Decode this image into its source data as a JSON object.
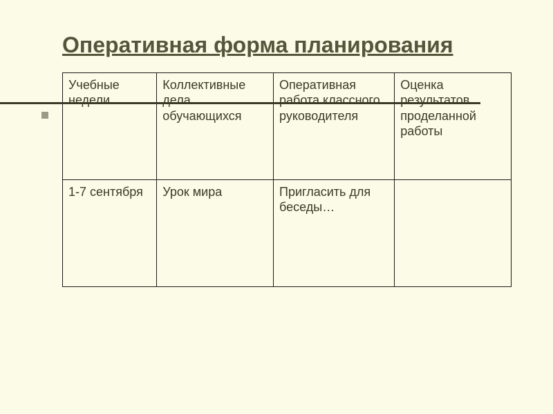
{
  "title": "Оперативная форма планирования",
  "table": {
    "columns": [
      "Учебные недели",
      "Коллективные дела обучающихся",
      "Оперативная работа классного руководителя",
      "Оценка результатов проделанной работы"
    ],
    "rows": [
      [
        "1-7 сентября",
        "Урок мира",
        "Пригласить для беседы…",
        ""
      ]
    ]
  },
  "colors": {
    "background": "#fbfbe7",
    "title_color": "#55553b",
    "text_color": "#3a3a28",
    "border_color": "#1a1a1a",
    "divider_color": "#3a3a28",
    "bullet_color": "#9b9b85"
  },
  "typography": {
    "title_fontsize": 32,
    "cell_fontsize": 18,
    "font_family": "Arial"
  }
}
